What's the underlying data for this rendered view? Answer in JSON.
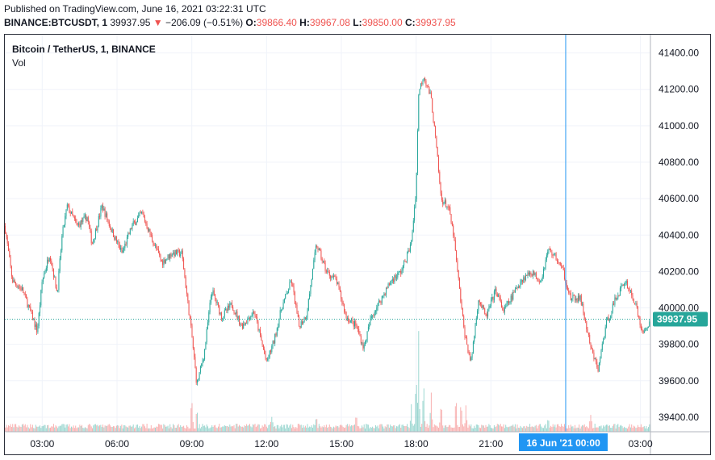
{
  "header": {
    "published": "Published on TradingView.com, June 16, 2021 03:22:31 UTC",
    "symbol": "BINANCE:BTCUSDT, 1",
    "last": "39937.95",
    "change_arrow": "▼",
    "change": "−206.09 (−0.51%)",
    "o_label": "O:",
    "o": "39866.40",
    "h_label": "H:",
    "h": "39967.08",
    "l_label": "L:",
    "l": "39850.00",
    "c_label": "C:",
    "c": "39937.95"
  },
  "legend": {
    "title": "Bitcoin / TetherUS, 1, BINANCE",
    "vol": "Vol"
  },
  "colors": {
    "up": "#26a69a",
    "down": "#ef5350",
    "crosshair": "#2196f3",
    "price_badge": "#26a69a",
    "time_badge": "#2196f3",
    "grid": "#f0f3fa"
  },
  "chart_data": {
    "type": "candlestick",
    "symbol": "BTCUSDT",
    "interval": "1 minute",
    "y_axis": {
      "ylim": [
        39320,
        41500
      ],
      "ticks": [
        39400,
        39600,
        39800,
        40000,
        40200,
        40400,
        40600,
        40800,
        41000,
        41200,
        41400
      ],
      "tick_labels": [
        "39400.00",
        "39600.00",
        "39800.00",
        "40000.00",
        "40200.00",
        "40400.00",
        "40600.00",
        "40800.00",
        "41000.00",
        "41200.00",
        "41400.00"
      ]
    },
    "x_axis": {
      "range_hours": [
        1.5,
        27.4
      ],
      "ticks": [
        3,
        6,
        9,
        12,
        15,
        18,
        21,
        27
      ],
      "tick_labels": [
        "03:00",
        "06:00",
        "09:00",
        "12:00",
        "15:00",
        "18:00",
        "21:00",
        "03:00"
      ]
    },
    "last_price": 39937.95,
    "last_price_label": "39937.95",
    "crosshair": {
      "x_hours": 24,
      "label": "16 Jun '21   00:00"
    },
    "price_path": [
      [
        1.5,
        40450
      ],
      [
        1.8,
        40150
      ],
      [
        2.2,
        40100
      ],
      [
        2.6,
        39950
      ],
      [
        2.8,
        39870
      ],
      [
        3.0,
        40150
      ],
      [
        3.3,
        40300
      ],
      [
        3.6,
        40080
      ],
      [
        3.8,
        40400
      ],
      [
        4.0,
        40560
      ],
      [
        4.4,
        40450
      ],
      [
        4.8,
        40500
      ],
      [
        5.0,
        40350
      ],
      [
        5.4,
        40560
      ],
      [
        5.8,
        40420
      ],
      [
        6.2,
        40300
      ],
      [
        6.6,
        40450
      ],
      [
        7.0,
        40520
      ],
      [
        7.4,
        40380
      ],
      [
        7.8,
        40250
      ],
      [
        8.2,
        40300
      ],
      [
        8.6,
        40300
      ],
      [
        9.0,
        39850
      ],
      [
        9.2,
        39580
      ],
      [
        9.5,
        39750
      ],
      [
        9.8,
        40100
      ],
      [
        10.2,
        39950
      ],
      [
        10.6,
        40020
      ],
      [
        11.0,
        39900
      ],
      [
        11.5,
        39980
      ],
      [
        12.0,
        39700
      ],
      [
        12.3,
        39820
      ],
      [
        12.6,
        40000
      ],
      [
        13.0,
        40150
      ],
      [
        13.3,
        39900
      ],
      [
        13.6,
        39960
      ],
      [
        14.0,
        40350
      ],
      [
        14.4,
        40200
      ],
      [
        14.8,
        40150
      ],
      [
        15.2,
        39950
      ],
      [
        15.6,
        39900
      ],
      [
        15.9,
        39780
      ],
      [
        16.2,
        39950
      ],
      [
        16.6,
        40050
      ],
      [
        17.0,
        40150
      ],
      [
        17.4,
        40200
      ],
      [
        17.8,
        40350
      ],
      [
        18.0,
        40650
      ],
      [
        18.1,
        41180
      ],
      [
        18.3,
        41280
      ],
      [
        18.6,
        41150
      ],
      [
        18.8,
        40900
      ],
      [
        19.0,
        40600
      ],
      [
        19.3,
        40550
      ],
      [
        19.5,
        40400
      ],
      [
        19.7,
        40150
      ],
      [
        19.9,
        39900
      ],
      [
        20.0,
        39820
      ],
      [
        20.2,
        39700
      ],
      [
        20.5,
        40050
      ],
      [
        20.8,
        39950
      ],
      [
        21.2,
        40100
      ],
      [
        21.5,
        39980
      ],
      [
        21.8,
        40050
      ],
      [
        22.2,
        40150
      ],
      [
        22.6,
        40200
      ],
      [
        23.0,
        40150
      ],
      [
        23.3,
        40320
      ],
      [
        23.6,
        40280
      ],
      [
        23.9,
        40200
      ],
      [
        24.2,
        40050
      ],
      [
        24.6,
        40050
      ],
      [
        25.0,
        39780
      ],
      [
        25.3,
        39660
      ],
      [
        25.6,
        39900
      ],
      [
        26.0,
        40050
      ],
      [
        26.4,
        40150
      ],
      [
        26.8,
        40020
      ],
      [
        27.1,
        39850
      ],
      [
        27.4,
        39940
      ]
    ],
    "volume_spikes": [
      [
        9.0,
        0.35
      ],
      [
        9.2,
        0.22
      ],
      [
        12.2,
        0.12
      ],
      [
        14.0,
        0.18
      ],
      [
        15.6,
        0.15
      ],
      [
        17.8,
        0.25
      ],
      [
        18.0,
        0.55
      ],
      [
        18.1,
        1.0
      ],
      [
        18.3,
        0.65
      ],
      [
        18.6,
        0.4
      ],
      [
        19.0,
        0.3
      ],
      [
        19.6,
        0.45
      ],
      [
        19.8,
        0.35
      ],
      [
        20.0,
        0.25
      ],
      [
        23.3,
        0.12
      ],
      [
        25.0,
        0.15
      ]
    ]
  }
}
